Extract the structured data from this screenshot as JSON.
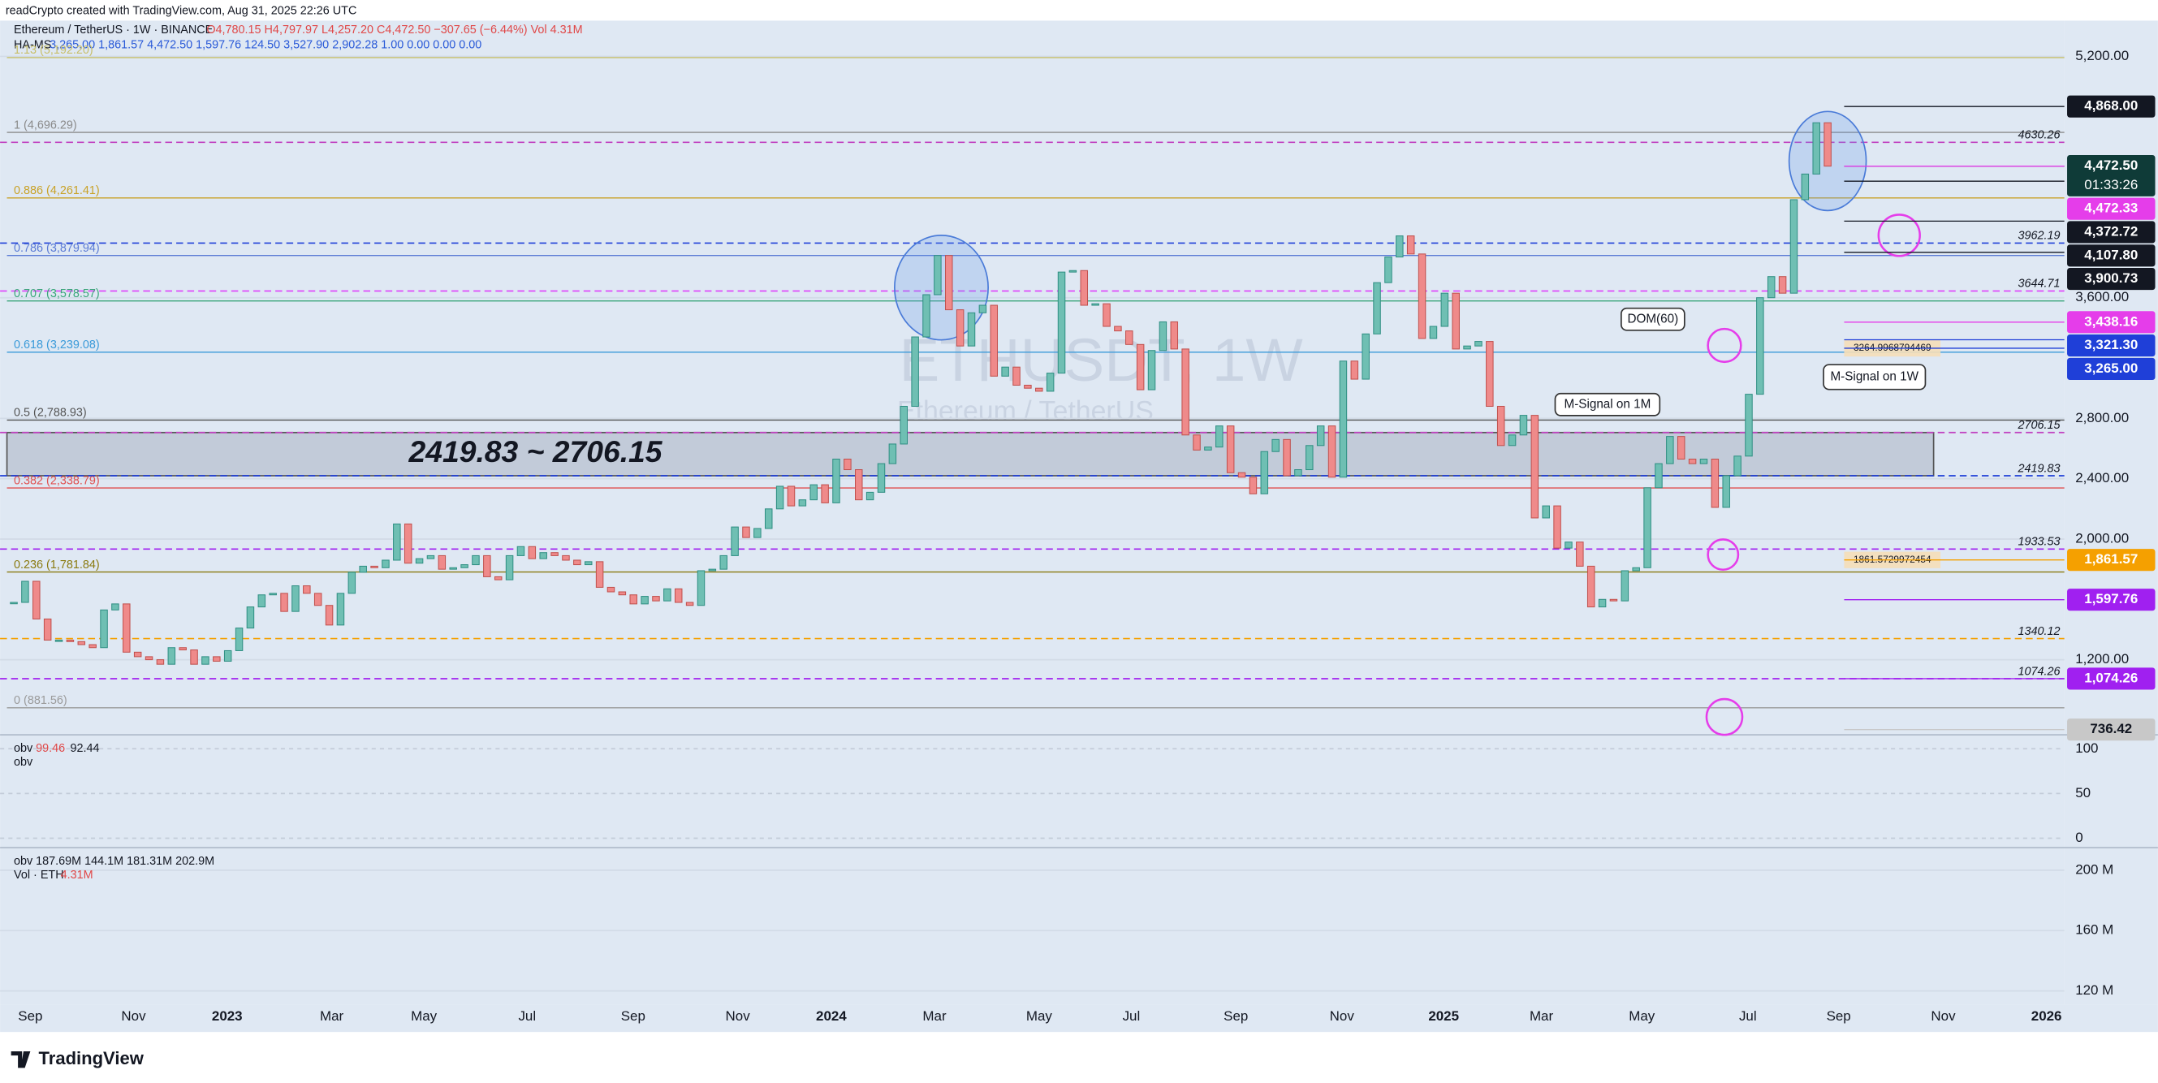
{
  "header": "readCrypto created with TradingView.com, Aug 31, 2025 22:26 UTC",
  "legend": {
    "symbol": "Ethereum / TetherUS · 1W · BINANCE",
    "ohlc": "O4,780.15 H4,797.97 L4,257.20 C4,472.50 −307.65 (−6.44%) Vol 4.31M",
    "indicator": "HA-MS",
    "indicator_values": "3,265.00 1,861.57 4,472.50 1,597.76 124.50 3,527.90 2,902.28 1.00 0.00 0.00 0.00"
  },
  "watermark": {
    "symbol": "ETHUSDT, 1W",
    "name": "Ethereum / TetherUS"
  },
  "brand": "TradingView",
  "xticks": [
    "Sep",
    "Nov",
    "2023",
    "Mar",
    "May",
    "Jul",
    "Sep",
    "Nov",
    "2024",
    "Mar",
    "May",
    "Jul",
    "Sep",
    "Nov",
    "2025",
    "Mar",
    "May",
    "Jul",
    "Sep",
    "Nov",
    "2026"
  ],
  "chart_data": [
    {
      "type": "candlestick",
      "up_color": "#6fbfb3",
      "down_color": "#ef8a8a",
      "ylim": [
        711,
        5437
      ],
      "yticks": [
        {
          "value": 5200,
          "label": "5,200.00"
        },
        {
          "value": 3600,
          "label": "3,600.00"
        },
        {
          "value": 2800,
          "label": "2,800.00"
        },
        {
          "value": 2400,
          "label": "2,400.00"
        },
        {
          "value": 2000,
          "label": "2,000.00"
        },
        {
          "value": 1200,
          "label": "1,200.00"
        }
      ],
      "close": [
        1580,
        1720,
        1470,
        1330,
        1330,
        1320,
        1300,
        1280,
        1530,
        1570,
        1250,
        1220,
        1200,
        1170,
        1280,
        1265,
        1170,
        1220,
        1190,
        1260,
        1410,
        1550,
        1630,
        1640,
        1520,
        1690,
        1640,
        1560,
        1430,
        1640,
        1780,
        1820,
        1810,
        1860,
        2100,
        1840,
        1870,
        1890,
        1800,
        1810,
        1830,
        1890,
        1750,
        1730,
        1890,
        1950,
        1870,
        1910,
        1890,
        1860,
        1830,
        1850,
        1680,
        1650,
        1630,
        1570,
        1620,
        1590,
        1670,
        1580,
        1560,
        1790,
        1800,
        1890,
        2080,
        2010,
        2070,
        2200,
        2350,
        2220,
        2260,
        2360,
        2240,
        2530,
        2460,
        2260,
        2310,
        2500,
        2630,
        2880,
        3340,
        3620,
        3880,
        3520,
        3280,
        3500,
        3550,
        3080,
        3140,
        3020,
        3000,
        2980,
        3100,
        3770,
        3780,
        3550,
        3560,
        3410,
        3380,
        3290,
        2990,
        3250,
        3440,
        3260,
        2690,
        2590,
        2610,
        2750,
        2440,
        2410,
        2300,
        2580,
        2660,
        2420,
        2460,
        2620,
        2750,
        2410,
        3180,
        3060,
        3360,
        3700,
        3870,
        4010,
        3890,
        3330,
        3410,
        3630,
        3260,
        3280,
        3310,
        2880,
        2620,
        2690,
        2820,
        2140,
        2220,
        1940,
        1980,
        1820,
        1550,
        1600,
        1590,
        1790,
        1810,
        2340,
        2500,
        2680,
        2530,
        2500,
        2530,
        2210,
        2420,
        2550,
        2960,
        3600,
        3740,
        3630,
        4250,
        4420,
        4760,
        4472.5
      ],
      "fib_levels": [
        {
          "value": 5192.2,
          "label": "1.13 (5,192.20)",
          "color": "#c8bf6a"
        },
        {
          "value": 4696.29,
          "label": "1 (4,696.29)",
          "color": "#8a8a8a"
        },
        {
          "value": 4261.41,
          "label": "0.886 (4,261.41)",
          "color": "#c9a227"
        },
        {
          "value": 3879.94,
          "label": "0.786 (3,879.94)",
          "color": "#5b7bd5"
        },
        {
          "value": 3578.57,
          "label": "0.707 (3,578.57)",
          "color": "#3aa67a"
        },
        {
          "value": 3239.08,
          "label": "0.618 (3,239.08)",
          "color": "#3a9ad9"
        },
        {
          "value": 2788.93,
          "label": "0.5 (2,788.93)",
          "color": "#555555"
        },
        {
          "value": 2338.79,
          "label": "0.382 (2,338.79)",
          "color": "#e05050"
        },
        {
          "value": 1781.84,
          "label": "0.236 (1,781.84)",
          "color": "#8a7a10"
        },
        {
          "value": 881.56,
          "label": "0 (881.56)",
          "color": "#9a9a9a"
        }
      ],
      "levels": [
        {
          "value": 4630.26,
          "color": "#c040c0"
        },
        {
          "value": 3962.19,
          "color": "#1f3fd8"
        },
        {
          "value": 3644.71,
          "color": "#e040fb"
        },
        {
          "value": 2706.15,
          "color": "#c040c0"
        },
        {
          "value": 2419.83,
          "color": "#1f3fd8"
        },
        {
          "value": 1933.53,
          "color": "#a020f0"
        },
        {
          "value": 1340.12,
          "color": "#f5a000"
        },
        {
          "value": 1074.26,
          "color": "#a020f0"
        }
      ],
      "price_badges": [
        {
          "value": 4868,
          "label": "4,868.00",
          "color": "#131722"
        },
        {
          "value": 4472.5,
          "label": "4,472.50",
          "color": "#0f3b38",
          "countdown": "01:33:26"
        },
        {
          "value": 4472.33,
          "label": "4,472.33",
          "color": "#e53dea"
        },
        {
          "value": 4372.72,
          "label": "4,372.72",
          "color": "#131722"
        },
        {
          "value": 4107.8,
          "label": "4,107.80",
          "color": "#131722"
        },
        {
          "value": 3900.73,
          "label": "3,900.73",
          "color": "#131722"
        },
        {
          "value": 3438.16,
          "label": "3,438.16",
          "color": "#e53dea"
        },
        {
          "value": 3321.3,
          "label": "3,321.30",
          "color": "#1f3fd8"
        },
        {
          "value": 3265,
          "label": "3,265.00",
          "color": "#1f3fd8"
        },
        {
          "value": 1861.57,
          "label": "1,861.57",
          "color": "#f5a000"
        },
        {
          "value": 1597.76,
          "label": "1,597.76",
          "color": "#a020f0"
        },
        {
          "value": 1074.26,
          "label": "1,074.26",
          "color": "#a020f0"
        },
        {
          "value": 736.42,
          "label": "736.42",
          "color": "#c8c8c8"
        }
      ],
      "zone": {
        "low": 2419.83,
        "high": 2706.15,
        "label": "2419.83 ~ 2706.15"
      },
      "boxed_labels": [
        {
          "value": 3264.9968794469,
          "label": "3264.9968794469"
        },
        {
          "value": 1861.5729972454,
          "label": "1861.5729972454"
        }
      ],
      "annotations": [
        "DOM(60)",
        "M-Signal on 1M",
        "M-Signal on 1W"
      ]
    },
    {
      "type": "oscillator",
      "name": "obv",
      "values_text": [
        99.46,
        92.44
      ],
      "second_name": "obv",
      "ylim": [
        -9,
        114
      ],
      "yticks": [
        0,
        50,
        100
      ]
    },
    {
      "type": "volume",
      "name": "obv",
      "values_text": "187.69M 144.1M 181.31M 202.9M",
      "vol_name": "Vol · ETH",
      "vol_value": "4.31M",
      "ylim": [
        111,
        214
      ],
      "yticks": [
        {
          "value": 200,
          "label": "200 M"
        },
        {
          "value": 160,
          "label": "160 M"
        },
        {
          "value": 120,
          "label": "120 M"
        }
      ]
    }
  ]
}
